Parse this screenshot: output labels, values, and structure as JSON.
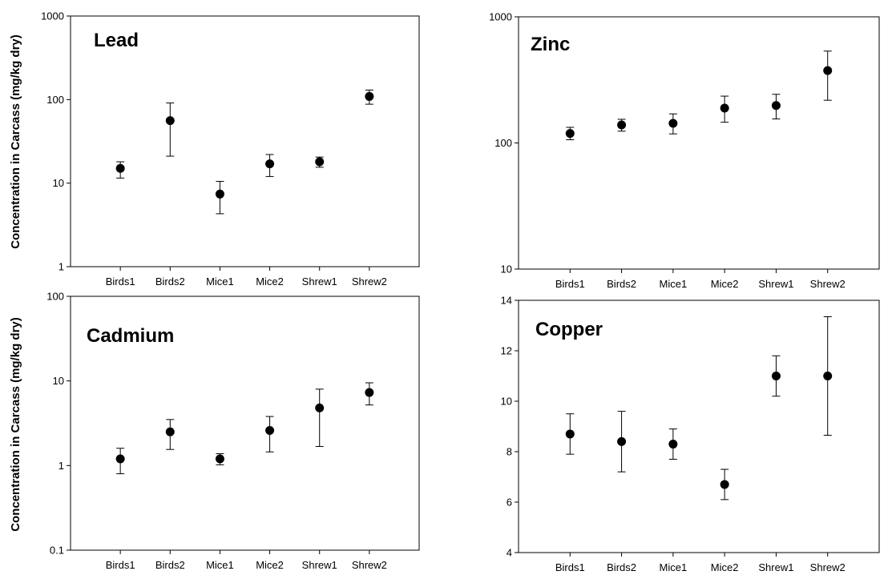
{
  "chart_data": [
    {
      "type": "scatter",
      "title": "Lead",
      "ylabel": "Concentration in Carcass (mg/kg dry)",
      "yscale": "log",
      "ylim": [
        1,
        1000
      ],
      "yticks": [
        "1",
        "10",
        "100",
        "1000"
      ],
      "categories": [
        "Birds1",
        "Birds2",
        "Mice1",
        "Mice2",
        "Shrew1",
        "Shrew2"
      ],
      "values": [
        15,
        56,
        7.4,
        17,
        18,
        109
      ],
      "err_low": [
        11.5,
        21,
        4.3,
        12,
        15.5,
        88
      ],
      "err_high": [
        18,
        91,
        10.5,
        22,
        20.5,
        130
      ]
    },
    {
      "type": "scatter",
      "title": "Zinc",
      "ylabel": "",
      "yscale": "log",
      "ylim": [
        10,
        1000
      ],
      "yticks": [
        "10",
        "100",
        "1000"
      ],
      "categories": [
        "Birds1",
        "Birds2",
        "Mice1",
        "Mice2",
        "Shrew1",
        "Shrew2"
      ],
      "values": [
        119,
        139,
        143,
        189,
        198,
        375
      ],
      "err_low": [
        106,
        124,
        118,
        146,
        155,
        218
      ],
      "err_high": [
        133,
        154,
        170,
        235,
        243,
        535
      ]
    },
    {
      "type": "scatter",
      "title": "Cadmium",
      "ylabel": "Concentration in Carcass (mg/kg dry)",
      "yscale": "log",
      "ylim": [
        0.1,
        100
      ],
      "yticks": [
        "0.1",
        "1",
        "10",
        "100"
      ],
      "categories": [
        "Birds1",
        "Birds2",
        "Mice1",
        "Mice2",
        "Shrew1",
        "Shrew2"
      ],
      "values": [
        1.2,
        2.5,
        1.2,
        2.6,
        4.8,
        7.3
      ],
      "err_low": [
        0.8,
        1.55,
        1.02,
        1.45,
        1.68,
        5.2
      ],
      "err_high": [
        1.6,
        3.5,
        1.38,
        3.8,
        8.0,
        9.5
      ]
    },
    {
      "type": "scatter",
      "title": "Copper",
      "ylabel": "",
      "yscale": "linear",
      "ylim": [
        4,
        14
      ],
      "yticks": [
        "4",
        "6",
        "8",
        "10",
        "12",
        "14"
      ],
      "categories": [
        "Birds1",
        "Birds2",
        "Mice1",
        "Mice2",
        "Shrew1",
        "Shrew2"
      ],
      "values": [
        8.7,
        8.4,
        8.3,
        6.7,
        11.0,
        11.0
      ],
      "err_low": [
        7.9,
        7.2,
        7.7,
        6.1,
        10.2,
        8.65
      ],
      "err_high": [
        9.5,
        9.6,
        8.9,
        7.3,
        11.8,
        13.35
      ]
    }
  ]
}
